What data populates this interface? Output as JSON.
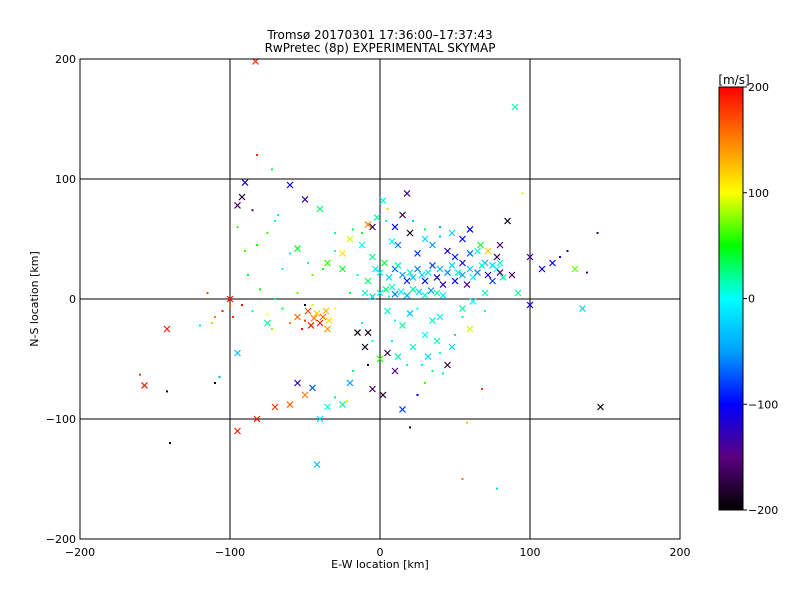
{
  "chart_data": {
    "type": "scatter",
    "title": "Tromsø 20170301 17:36:00–17:37:43",
    "subtitle": "RwPretec (8p) EXPERIMENTAL SKYMAP",
    "xlabel": "E-W location [km]",
    "ylabel": "N-S location [km]",
    "xlim": [
      -200,
      200
    ],
    "ylim": [
      -200,
      200
    ],
    "x_ticks": [
      -200,
      -100,
      0,
      100,
      200
    ],
    "y_ticks": [
      -200,
      -100,
      0,
      100,
      200
    ],
    "grid": true,
    "colorbar": {
      "label": "[m/s]",
      "range": [
        -200,
        200
      ],
      "ticks": [
        -200,
        -100,
        0,
        100,
        200
      ],
      "colormap": [
        "#000000",
        "#5a007f",
        "#0000ff",
        "#00a0ff",
        "#00ffff",
        "#00ff00",
        "#ffff00",
        "#ff8000",
        "#ff0000"
      ]
    },
    "markers": [
      "x",
      "dot"
    ],
    "points": [
      [
        -83,
        198,
        "x",
        180
      ],
      [
        -82,
        120,
        "dot",
        180
      ],
      [
        -90,
        97,
        "x",
        -120
      ],
      [
        -60,
        95,
        "x",
        -110
      ],
      [
        -92,
        85,
        "x",
        -180
      ],
      [
        -95,
        78,
        "x",
        -160
      ],
      [
        -50,
        83,
        "x",
        -130
      ],
      [
        -85,
        74,
        "dot",
        -150
      ],
      [
        -70,
        65,
        "dot",
        10
      ],
      [
        -40,
        75,
        "x",
        30
      ],
      [
        -75,
        55,
        "dot",
        60
      ],
      [
        -55,
        42,
        "x",
        40
      ],
      [
        -30,
        55,
        "dot",
        20
      ],
      [
        -20,
        50,
        "x",
        90
      ],
      [
        -25,
        38,
        "x",
        110
      ],
      [
        -12,
        45,
        "x",
        0
      ],
      [
        -5,
        60,
        "x",
        -170
      ],
      [
        2,
        82,
        "x",
        5
      ],
      [
        5,
        75,
        "dot",
        120
      ],
      [
        10,
        60,
        "x",
        -100
      ],
      [
        12,
        45,
        "x",
        -60
      ],
      [
        18,
        88,
        "x",
        -140
      ],
      [
        20,
        55,
        "x",
        -190
      ],
      [
        25,
        38,
        "x",
        -80
      ],
      [
        30,
        50,
        "x",
        -20
      ],
      [
        35,
        45,
        "x",
        -50
      ],
      [
        40,
        52,
        "dot",
        -30
      ],
      [
        45,
        40,
        "x",
        -110
      ],
      [
        50,
        35,
        "x",
        -90
      ],
      [
        55,
        30,
        "x",
        -120
      ],
      [
        60,
        38,
        "x",
        -70
      ],
      [
        65,
        40,
        "x",
        10
      ],
      [
        70,
        30,
        "x",
        -40
      ],
      [
        75,
        28,
        "x",
        -20
      ],
      [
        80,
        45,
        "x",
        -160
      ],
      [
        85,
        65,
        "x",
        -190
      ],
      [
        90,
        160,
        "x",
        10
      ],
      [
        95,
        88,
        "dot",
        90
      ],
      [
        100,
        35,
        "x",
        -140
      ],
      [
        108,
        25,
        "x",
        -110
      ],
      [
        115,
        30,
        "x",
        -100
      ],
      [
        120,
        35,
        "dot",
        -120
      ],
      [
        125,
        40,
        "dot",
        -130
      ],
      [
        130,
        25,
        "x",
        70
      ],
      [
        138,
        22,
        "dot",
        -150
      ],
      [
        145,
        55,
        "dot",
        -160
      ],
      [
        147,
        -90,
        "x",
        -190
      ],
      [
        135,
        -8,
        "x",
        -20
      ],
      [
        100,
        -5,
        "x",
        -120
      ],
      [
        92,
        5,
        "x",
        20
      ],
      [
        88,
        20,
        "x",
        -160
      ],
      [
        78,
        35,
        "x",
        -170
      ],
      [
        70,
        -10,
        "dot",
        5
      ],
      [
        60,
        -25,
        "x",
        90
      ],
      [
        55,
        -15,
        "dot",
        20
      ],
      [
        48,
        -40,
        "x",
        -20
      ],
      [
        45,
        -55,
        "x",
        -170
      ],
      [
        40,
        -45,
        "dot",
        10
      ],
      [
        35,
        -60,
        "dot",
        30
      ],
      [
        30,
        -70,
        "dot",
        60
      ],
      [
        25,
        -80,
        "dot",
        -100
      ],
      [
        20,
        -107,
        "dot",
        -190
      ],
      [
        15,
        -92,
        "x",
        -80
      ],
      [
        10,
        -60,
        "x",
        -150
      ],
      [
        5,
        -45,
        "x",
        -170
      ],
      [
        2,
        -80,
        "x",
        -180
      ],
      [
        -5,
        -75,
        "x",
        -160
      ],
      [
        -8,
        -55,
        "dot",
        -180
      ],
      [
        -10,
        -40,
        "x",
        -190
      ],
      [
        -15,
        -28,
        "x",
        -200
      ],
      [
        -18,
        -60,
        "dot",
        30
      ],
      [
        -20,
        -70,
        "x",
        -50
      ],
      [
        -22,
        -85,
        "dot",
        90
      ],
      [
        -25,
        -88,
        "x",
        20
      ],
      [
        -30,
        -82,
        "dot",
        30
      ],
      [
        -35,
        -90,
        "x",
        10
      ],
      [
        -40,
        -100,
        "x",
        -20
      ],
      [
        -42,
        -138,
        "x",
        -30
      ],
      [
        -45,
        -74,
        "x",
        -70
      ],
      [
        -50,
        -80,
        "x",
        150
      ],
      [
        -55,
        -70,
        "x",
        -130
      ],
      [
        -60,
        -88,
        "x",
        160
      ],
      [
        -70,
        -90,
        "x",
        180
      ],
      [
        -82,
        -100,
        "x",
        190
      ],
      [
        -95,
        -110,
        "x",
        190
      ],
      [
        -140,
        -120,
        "dot",
        -200
      ],
      [
        -142,
        -77,
        "dot",
        -200
      ],
      [
        -157,
        -72,
        "x",
        190
      ],
      [
        -160,
        -63,
        "dot",
        180
      ],
      [
        -142,
        -25,
        "x",
        190
      ],
      [
        -120,
        -22,
        "dot",
        -20
      ],
      [
        -112,
        -20,
        "dot",
        120
      ],
      [
        -110,
        -15,
        "dot",
        150
      ],
      [
        -100,
        -5,
        "dot",
        160
      ],
      [
        -105,
        -10,
        "dot",
        190
      ],
      [
        -98,
        -15,
        "dot",
        180
      ],
      [
        -92,
        -5,
        "dot",
        200
      ],
      [
        -115,
        5,
        "dot",
        170
      ],
      [
        -100,
        0,
        "x",
        190
      ],
      [
        -95,
        -45,
        "x",
        -30
      ],
      [
        -75,
        -20,
        "x",
        20
      ],
      [
        -75,
        -13,
        "dot",
        100
      ],
      [
        -72,
        -25,
        "dot",
        80
      ],
      [
        -110,
        -70,
        "dot",
        -190
      ],
      [
        -107,
        -65,
        "dot",
        -40
      ],
      [
        -90,
        40,
        "dot",
        60
      ],
      [
        -88,
        20,
        "dot",
        40
      ],
      [
        -65,
        25,
        "dot",
        10
      ],
      [
        -45,
        20,
        "dot",
        70
      ],
      [
        -35,
        30,
        "x",
        60
      ],
      [
        -25,
        25,
        "x",
        40
      ],
      [
        -15,
        20,
        "dot",
        10
      ],
      [
        -8,
        15,
        "x",
        30
      ],
      [
        -5,
        35,
        "x",
        20
      ],
      [
        -3,
        25,
        "x",
        -10
      ],
      [
        0,
        22,
        "x",
        0
      ],
      [
        3,
        30,
        "x",
        40
      ],
      [
        6,
        18,
        "x",
        -20
      ],
      [
        8,
        10,
        "x",
        10
      ],
      [
        10,
        25,
        "x",
        -70
      ],
      [
        12,
        28,
        "x",
        20
      ],
      [
        15,
        20,
        "x",
        -50
      ],
      [
        18,
        15,
        "x",
        -90
      ],
      [
        20,
        22,
        "x",
        10
      ],
      [
        22,
        18,
        "x",
        -30
      ],
      [
        25,
        25,
        "x",
        -60
      ],
      [
        28,
        20,
        "x",
        -20
      ],
      [
        30,
        15,
        "x",
        -100
      ],
      [
        32,
        22,
        "x",
        0
      ],
      [
        35,
        28,
        "x",
        -80
      ],
      [
        38,
        18,
        "x",
        -110
      ],
      [
        40,
        25,
        "x",
        -40
      ],
      [
        42,
        12,
        "x",
        -130
      ],
      [
        45,
        22,
        "x",
        -60
      ],
      [
        48,
        28,
        "x",
        -20
      ],
      [
        50,
        15,
        "x",
        -100
      ],
      [
        52,
        22,
        "x",
        10
      ],
      [
        55,
        20,
        "x",
        -50
      ],
      [
        58,
        12,
        "x",
        -140
      ],
      [
        60,
        25,
        "x",
        -30
      ],
      [
        62,
        18,
        "x",
        0
      ],
      [
        65,
        22,
        "x",
        -60
      ],
      [
        68,
        28,
        "x",
        10
      ],
      [
        72,
        20,
        "x",
        -120
      ],
      [
        75,
        15,
        "x",
        -80
      ],
      [
        78,
        25,
        "x",
        0
      ],
      [
        80,
        22,
        "x",
        -150
      ],
      [
        82,
        18,
        "x",
        20
      ],
      [
        -60,
        -20,
        "dot",
        150
      ],
      [
        -55,
        -15,
        "x",
        160
      ],
      [
        -50,
        -18,
        "dot",
        180
      ],
      [
        -48,
        -10,
        "x",
        170
      ],
      [
        -46,
        -22,
        "x",
        190
      ],
      [
        -44,
        -16,
        "x",
        150
      ],
      [
        -42,
        -12,
        "x",
        120
      ],
      [
        -40,
        -20,
        "x",
        190
      ],
      [
        -38,
        -15,
        "x",
        160
      ],
      [
        -36,
        -10,
        "x",
        130
      ],
      [
        -34,
        -18,
        "x",
        110
      ],
      [
        -52,
        -25,
        "dot",
        200
      ],
      [
        -50,
        -5,
        "dot",
        -200
      ],
      [
        -45,
        -5,
        "dot",
        90
      ],
      [
        -35,
        -25,
        "x",
        140
      ],
      [
        -30,
        -8,
        "dot",
        100
      ],
      [
        -20,
        5,
        "dot",
        40
      ],
      [
        -10,
        5,
        "x",
        10
      ],
      [
        -5,
        2,
        "x",
        -20
      ],
      [
        0,
        5,
        "x",
        0
      ],
      [
        4,
        8,
        "x",
        30
      ],
      [
        6,
        2,
        "dot",
        10
      ],
      [
        10,
        4,
        "x",
        -60
      ],
      [
        14,
        6,
        "x",
        0
      ],
      [
        18,
        3,
        "x",
        -40
      ],
      [
        22,
        8,
        "x",
        20
      ],
      [
        26,
        6,
        "x",
        -20
      ],
      [
        30,
        3,
        "x",
        10
      ],
      [
        34,
        7,
        "x",
        -50
      ],
      [
        38,
        5,
        "x",
        20
      ],
      [
        42,
        3,
        "x",
        -10
      ],
      [
        5,
        -10,
        "x",
        10
      ],
      [
        10,
        -18,
        "dot",
        -10
      ],
      [
        15,
        -22,
        "x",
        20
      ],
      [
        20,
        -12,
        "x",
        -30
      ],
      [
        25,
        -8,
        "dot",
        0
      ],
      [
        -12,
        -20,
        "dot",
        20
      ],
      [
        -8,
        -28,
        "x",
        -190
      ],
      [
        -5,
        -35,
        "dot",
        0
      ],
      [
        0,
        -50,
        "x",
        60
      ],
      [
        8,
        -35,
        "dot",
        -10
      ],
      [
        12,
        -48,
        "x",
        20
      ],
      [
        18,
        -55,
        "dot",
        -10
      ],
      [
        22,
        -40,
        "x",
        10
      ],
      [
        28,
        -55,
        "dot",
        0
      ],
      [
        32,
        -48,
        "x",
        -20
      ],
      [
        38,
        -35,
        "x",
        10
      ],
      [
        42,
        -62,
        "dot",
        20
      ],
      [
        50,
        -30,
        "dot",
        30
      ],
      [
        30,
        -30,
        "x",
        0
      ],
      [
        35,
        -18,
        "x",
        10
      ],
      [
        40,
        -15,
        "x",
        -10
      ],
      [
        55,
        -8,
        "x",
        20
      ],
      [
        62,
        -2,
        "x",
        0
      ],
      [
        70,
        5,
        "x",
        10
      ],
      [
        68,
        -75,
        "dot",
        180
      ],
      [
        80,
        30,
        "x",
        10
      ],
      [
        72,
        40,
        "x",
        120
      ],
      [
        67,
        45,
        "x",
        40
      ],
      [
        55,
        50,
        "x",
        -100
      ],
      [
        48,
        55,
        "x",
        -20
      ],
      [
        60,
        58,
        "x",
        -100
      ],
      [
        40,
        60,
        "dot",
        -50
      ],
      [
        30,
        58,
        "dot",
        30
      ],
      [
        22,
        65,
        "dot",
        -30
      ],
      [
        15,
        70,
        "x",
        -170
      ],
      [
        8,
        48,
        "x",
        0
      ],
      [
        4,
        65,
        "dot",
        10
      ],
      [
        -2,
        68,
        "x",
        20
      ],
      [
        -8,
        62,
        "x",
        150
      ],
      [
        -12,
        55,
        "dot",
        40
      ],
      [
        -18,
        58,
        "dot",
        30
      ],
      [
        -30,
        40,
        "dot",
        10
      ],
      [
        -38,
        25,
        "dot",
        40
      ],
      [
        -48,
        30,
        "dot",
        20
      ],
      [
        -55,
        5,
        "dot",
        70
      ],
      [
        -65,
        -8,
        "dot",
        40
      ],
      [
        -70,
        0,
        "dot",
        30
      ],
      [
        -80,
        8,
        "dot",
        50
      ],
      [
        -85,
        -10,
        "dot",
        20
      ],
      [
        55,
        -150,
        "dot",
        150
      ],
      [
        58,
        -103,
        "dot",
        130
      ],
      [
        78,
        -158,
        "dot",
        -30
      ],
      [
        -68,
        70,
        "dot",
        20
      ],
      [
        -72,
        108,
        "dot",
        40
      ],
      [
        -95,
        60,
        "dot",
        60
      ],
      [
        -82,
        45,
        "dot",
        50
      ],
      [
        -60,
        38,
        "dot",
        10
      ]
    ]
  }
}
